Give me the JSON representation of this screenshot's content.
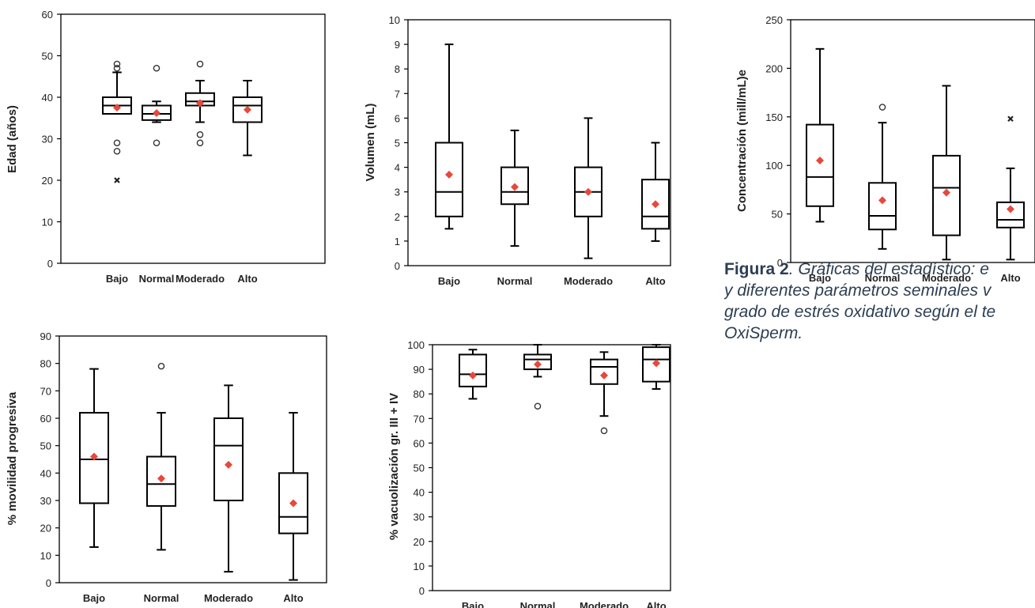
{
  "colors": {
    "mean_marker": "#e8483b",
    "axis": "#000000",
    "caption_text": "#2c3e52"
  },
  "caption": {
    "label": "Figura 2",
    "lines": [
      ". Gráficas del estadístico: e",
      "y diferentes parámetros seminales v",
      "grado de estrés oxidativo según el te",
      "OxiSperm."
    ]
  },
  "chart_data": [
    {
      "type": "boxplot",
      "ylabel": "Edad (años)",
      "ylim": [
        0,
        60
      ],
      "yticks": [
        0,
        10,
        20,
        30,
        40,
        50,
        60
      ],
      "yticks_labels": [
        "0",
        "10",
        "20",
        "30",
        "40",
        "50",
        "60"
      ],
      "categories": [
        "Bajo",
        "Normal",
        "Moderado",
        "Alto"
      ],
      "boxes": [
        {
          "category": "Bajo",
          "min": 36,
          "q1": 36,
          "median": 38,
          "q3": 40,
          "max": 46,
          "mean": 37.5,
          "outliers": [
            47,
            48,
            29,
            27
          ],
          "extremes": [
            20
          ]
        },
        {
          "category": "Normal",
          "min": 34,
          "q1": 34.5,
          "median": 36,
          "q3": 38,
          "max": 39,
          "mean": 36.2,
          "outliers": [
            47,
            29
          ],
          "extremes": []
        },
        {
          "category": "Moderado",
          "min": 34,
          "q1": 38,
          "median": 39,
          "q3": 41,
          "max": 44,
          "mean": 38.6,
          "outliers": [
            48,
            31,
            29
          ],
          "extremes": []
        },
        {
          "category": "Alto",
          "min": 26,
          "q1": 34,
          "median": 38,
          "q3": 40,
          "max": 44,
          "mean": 37,
          "outliers": [],
          "extremes": []
        }
      ]
    },
    {
      "type": "boxplot",
      "ylabel": "Volumen (mL)",
      "ylim": [
        0,
        10
      ],
      "yticks": [
        0,
        1,
        2,
        3,
        4,
        5,
        6,
        7,
        8,
        9,
        10
      ],
      "yticks_labels": [
        "0",
        "1",
        "2",
        "3",
        "4",
        "5",
        "6",
        "7",
        "8",
        "9",
        "10"
      ],
      "categories": [
        "Bajo",
        "Normal",
        "Moderado",
        "Alto"
      ],
      "boxes": [
        {
          "category": "Bajo",
          "min": 1.5,
          "q1": 2,
          "median": 3,
          "q3": 5,
          "max": 9,
          "mean": 3.7,
          "outliers": [],
          "extremes": []
        },
        {
          "category": "Normal",
          "min": 0.8,
          "q1": 2.5,
          "median": 3,
          "q3": 4,
          "max": 5.5,
          "mean": 3.2,
          "outliers": [],
          "extremes": []
        },
        {
          "category": "Moderado",
          "min": 0.3,
          "q1": 2,
          "median": 3,
          "q3": 4,
          "max": 6,
          "mean": 3,
          "outliers": [],
          "extremes": []
        },
        {
          "category": "Alto",
          "min": 1,
          "q1": 1.5,
          "median": 2,
          "q3": 3.5,
          "max": 5,
          "mean": 2.5,
          "outliers": [],
          "extremes": []
        }
      ]
    },
    {
      "type": "boxplot",
      "ylabel": "Concentración (mill/mL)e",
      "ylim": [
        0,
        250
      ],
      "yticks": [
        0,
        50,
        100,
        150,
        200,
        250
      ],
      "yticks_labels": [
        "0",
        "50",
        "100",
        "150",
        "200",
        "250"
      ],
      "categories": [
        "Bajo",
        "Normal",
        "Moderado",
        "Alto"
      ],
      "boxes": [
        {
          "category": "Bajo",
          "min": 42,
          "q1": 58,
          "median": 88,
          "q3": 142,
          "max": 220,
          "mean": 105,
          "outliers": [],
          "extremes": []
        },
        {
          "category": "Normal",
          "min": 14,
          "q1": 34,
          "median": 48,
          "q3": 82,
          "max": 144,
          "mean": 64,
          "outliers": [
            160
          ],
          "extremes": []
        },
        {
          "category": "Moderado",
          "min": 3,
          "q1": 28,
          "median": 77,
          "q3": 110,
          "max": 182,
          "mean": 72,
          "outliers": [],
          "extremes": []
        },
        {
          "category": "Alto",
          "min": 3,
          "q1": 36,
          "median": 44,
          "q3": 62,
          "max": 97,
          "mean": 55,
          "outliers": [],
          "extremes": [
            148
          ]
        }
      ]
    },
    {
      "type": "boxplot",
      "ylabel": "% movilidad progresiva",
      "ylim": [
        0,
        90
      ],
      "yticks": [
        0,
        10,
        20,
        30,
        40,
        50,
        60,
        70,
        80,
        90
      ],
      "yticks_labels": [
        "0",
        "10",
        "20",
        "30",
        "40",
        "50",
        "60",
        "70",
        "80",
        "90"
      ],
      "categories": [
        "Bajo",
        "Normal",
        "Moderado",
        "Alto"
      ],
      "boxes": [
        {
          "category": "Bajo",
          "min": 13,
          "q1": 29,
          "median": 45,
          "q3": 62,
          "max": 78,
          "mean": 46,
          "outliers": [],
          "extremes": []
        },
        {
          "category": "Normal",
          "min": 12,
          "q1": 28,
          "median": 36,
          "q3": 46,
          "max": 62,
          "mean": 38,
          "outliers": [
            79
          ],
          "extremes": []
        },
        {
          "category": "Moderado",
          "min": 4,
          "q1": 30,
          "median": 50,
          "q3": 60,
          "max": 72,
          "mean": 43,
          "outliers": [],
          "extremes": []
        },
        {
          "category": "Alto",
          "min": 1,
          "q1": 18,
          "median": 24,
          "q3": 40,
          "max": 62,
          "mean": 29,
          "outliers": [],
          "extremes": []
        }
      ]
    },
    {
      "type": "boxplot",
      "ylabel": "% vacuolización gr. III + IV",
      "ylim": [
        0,
        100
      ],
      "yticks": [
        0,
        10,
        20,
        30,
        40,
        50,
        60,
        70,
        80,
        90,
        100
      ],
      "yticks_labels": [
        "0",
        "10",
        "20",
        "30",
        "40",
        "50",
        "60",
        "70",
        "80",
        "90",
        "100"
      ],
      "categories": [
        "Bajo",
        "Normal",
        "Moderado",
        "Alto"
      ],
      "boxes": [
        {
          "category": "Bajo",
          "min": 78,
          "q1": 83,
          "median": 88,
          "q3": 96,
          "max": 98,
          "mean": 87.5,
          "outliers": [],
          "extremes": []
        },
        {
          "category": "Normal",
          "min": 87,
          "q1": 90,
          "median": 94,
          "q3": 96,
          "max": 100,
          "mean": 92,
          "outliers": [
            75
          ],
          "extremes": []
        },
        {
          "category": "Moderado",
          "min": 71,
          "q1": 84,
          "median": 91,
          "q3": 94,
          "max": 97,
          "mean": 87.5,
          "outliers": [
            65
          ],
          "extremes": []
        },
        {
          "category": "Alto",
          "min": 82,
          "q1": 85,
          "median": 94,
          "q3": 99,
          "max": 100,
          "mean": 92.5,
          "outliers": [],
          "extremes": []
        }
      ]
    }
  ]
}
